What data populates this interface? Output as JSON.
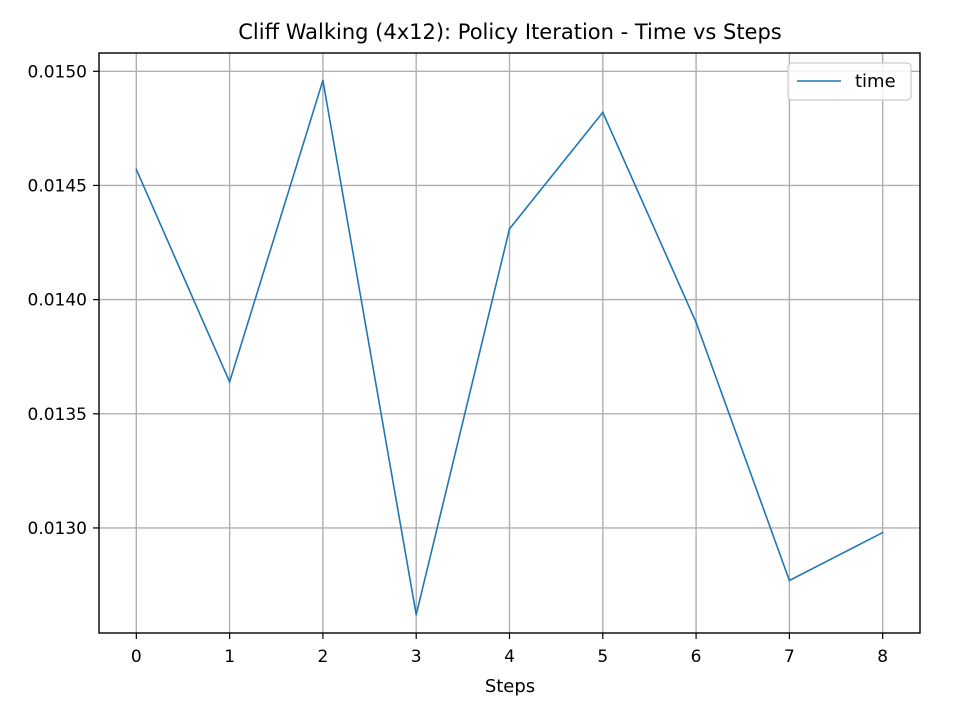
{
  "chart_data": {
    "type": "line",
    "title": "Cliff Walking (4x12): Policy Iteration - Time vs Steps",
    "xlabel": "Steps",
    "ylabel": "",
    "x": [
      0,
      1,
      2,
      3,
      4,
      5,
      6,
      7,
      8
    ],
    "series": [
      {
        "name": "time",
        "color": "#1f77b4",
        "values": [
          0.01457,
          0.01364,
          0.01496,
          0.01262,
          0.01431,
          0.01482,
          0.0139,
          0.01277,
          0.01298
        ]
      }
    ],
    "xlim": [
      -0.4,
      8.4
    ],
    "ylim": [
      0.01254,
      0.01508
    ],
    "xticks": [
      0,
      1,
      2,
      3,
      4,
      5,
      6,
      7,
      8
    ],
    "yticks": [
      0.013,
      0.0135,
      0.014,
      0.0145,
      0.015
    ],
    "ytick_labels": [
      "0.0130",
      "0.0135",
      "0.0140",
      "0.0145",
      "0.0150"
    ],
    "grid": true,
    "legend": "top-right"
  }
}
